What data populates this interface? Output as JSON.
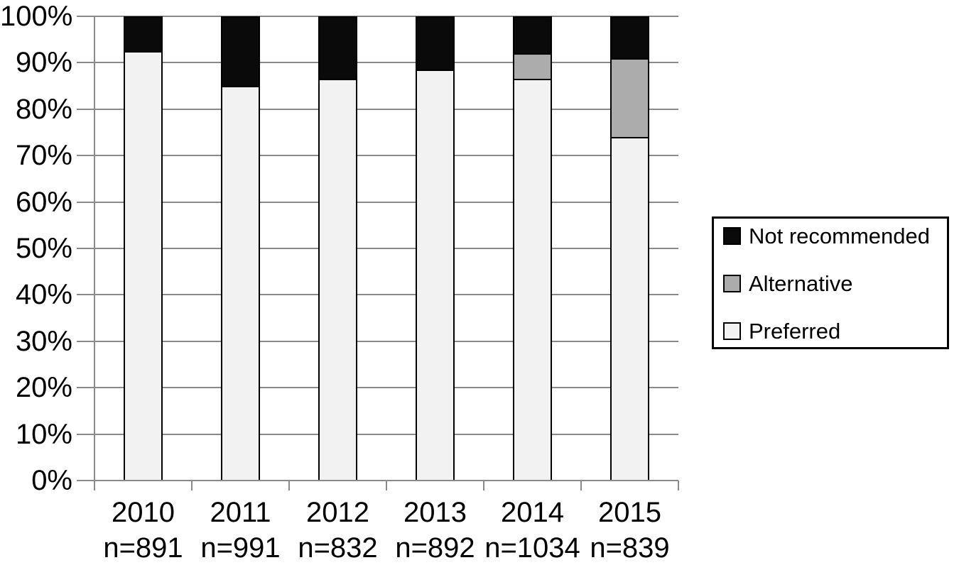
{
  "chart_data": {
    "type": "bar",
    "stacked": true,
    "title": "",
    "xlabel": "",
    "ylabel": "",
    "categories": [
      "2010",
      "2011",
      "2012",
      "2013",
      "2014",
      "2015"
    ],
    "category_sublabels": [
      "n=891",
      "n=991",
      "n=832",
      "n=892",
      "n=1034",
      "n=839"
    ],
    "series": [
      {
        "name": "Preferred",
        "color": "#f2f2f2",
        "values": [
          92.5,
          85.0,
          86.5,
          88.5,
          86.5,
          74.0
        ]
      },
      {
        "name": "Alternative",
        "color": "#acacac",
        "values": [
          0.0,
          0.0,
          0.0,
          0.0,
          5.5,
          17.0
        ]
      },
      {
        "name": "Not recommended",
        "color": "#0a0a0a",
        "values": [
          7.5,
          15.0,
          13.5,
          11.5,
          8.0,
          9.0
        ]
      }
    ],
    "ylim": [
      0,
      100
    ],
    "ytick_step": 10,
    "ytick_labels": [
      "0%",
      "10%",
      "20%",
      "30%",
      "40%",
      "50%",
      "60%",
      "70%",
      "80%",
      "90%",
      "100%"
    ],
    "grid": "horizontal",
    "gridline_color": "#8a8a8a",
    "bar_border_color": "#000000",
    "legend_position": "right"
  },
  "legend": {
    "items": [
      {
        "label": "Not recommended",
        "color": "#0a0a0a"
      },
      {
        "label": "Alternative",
        "color": "#acacac"
      },
      {
        "label": "Preferred",
        "color": "#f2f2f2"
      }
    ]
  }
}
